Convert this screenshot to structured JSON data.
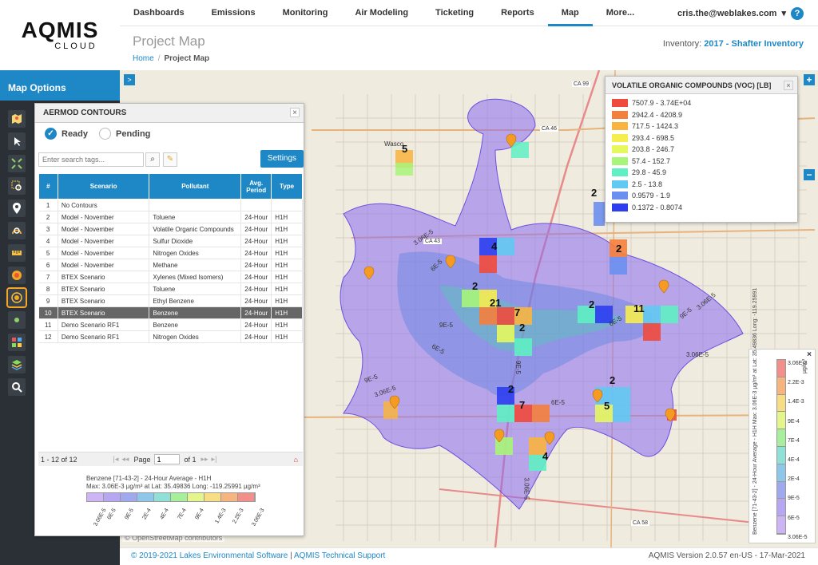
{
  "logo": {
    "main": "AQMIS",
    "sub": "CLOUD"
  },
  "nav": [
    "Dashboards",
    "Emissions",
    "Monitoring",
    "Air Modeling",
    "Ticketing",
    "Reports",
    "Map",
    "More..."
  ],
  "nav_active": "Map",
  "user": {
    "email": "cris.the@weblakes.com",
    "caret": "▾",
    "help": "?"
  },
  "page": {
    "title": "Project Map",
    "breadcrumb_home": "Home",
    "breadcrumb_sep": "/",
    "breadcrumb_current": "Project Map"
  },
  "inventory": {
    "label": "Inventory:",
    "value": "2017 - Shafter Inventory"
  },
  "sidebar": {
    "title": "Map Options",
    "expand": ">"
  },
  "panel": {
    "title": "AERMOD CONTOURS",
    "close": "×",
    "ready": "Ready",
    "pending": "Pending",
    "search_placeholder": "Enter search tags...",
    "settings": "Settings",
    "columns": [
      "#",
      "Scenario",
      "Pollutant",
      "Avg. Period",
      "Type"
    ],
    "rows": [
      [
        "1",
        "No Contours",
        "",
        "",
        ""
      ],
      [
        "2",
        "Model - November",
        "Toluene",
        "24-Hour",
        "H1H"
      ],
      [
        "3",
        "Model - November",
        "Volatile Organic Compounds",
        "24-Hour",
        "H1H"
      ],
      [
        "4",
        "Model - November",
        "Sulfur Dioxide",
        "24-Hour",
        "H1H"
      ],
      [
        "5",
        "Model - November",
        "Nitrogen Oxides",
        "24-Hour",
        "H1H"
      ],
      [
        "6",
        "Model - November",
        "Methane",
        "24-Hour",
        "H1H"
      ],
      [
        "7",
        "BTEX Scenario",
        "Xylenes (Mixed Isomers)",
        "24-Hour",
        "H1H"
      ],
      [
        "8",
        "BTEX Scenario",
        "Toluene",
        "24-Hour",
        "H1H"
      ],
      [
        "9",
        "BTEX Scenario",
        "Ethyl Benzene",
        "24-Hour",
        "H1H"
      ],
      [
        "10",
        "BTEX Scenario",
        "Benzene",
        "24-Hour",
        "H1H"
      ],
      [
        "11",
        "Demo Scenario RF1",
        "Benzene",
        "24-Hour",
        "H1H"
      ],
      [
        "12",
        "Demo Scenario RF1",
        "Nitrogen Oxides",
        "24-Hour",
        "H1H"
      ]
    ],
    "selected_row": 9,
    "pager": {
      "range": "1 - 12 of 12",
      "page_label": "Page",
      "page": "1",
      "of": "of 1",
      "first": "|◂",
      "prev": "◂◂",
      "next": "▸▸",
      "last": "▸|"
    },
    "legend_caption_1": "Benzene [71-43-2] -  24-Hour Average - H1H",
    "legend_caption_2": "Max: 3.06E-3 µg/m³  at Lat: 35.49836  Long: -119.25991   µg/m³",
    "legend_ticks": [
      "3.06E-5",
      "6E-5",
      "9E-5",
      "2E-4",
      "4E-4",
      "7E-4",
      "9E-4",
      "1.4E-3",
      "2.2E-3",
      "3.06E-3"
    ],
    "legend_colors": [
      "#cdb4f5",
      "#b7a6f2",
      "#a0a8ee",
      "#8fc7ea",
      "#8fe0d6",
      "#a7ef9c",
      "#e4f58c",
      "#f7dd84",
      "#f6b47e",
      "#f28f8a"
    ]
  },
  "voc_legend": {
    "title": "VOLATILE ORGANIC COMPOUNDS (VOC) [LB]",
    "close": "×",
    "items": [
      {
        "label": "7507.9 - 3.74E+04",
        "color": "#f04a3c"
      },
      {
        "label": "2942.4 - 4208.9",
        "color": "#f5803c"
      },
      {
        "label": "717.5 - 1424.3",
        "color": "#f9b440"
      },
      {
        "label": "293.4 - 698.5",
        "color": "#f6ed4e"
      },
      {
        "label": "203.8 - 246.7",
        "color": "#e6f85e"
      },
      {
        "label": "57.4 - 152.7",
        "color": "#a9f57a"
      },
      {
        "label": "29.8 - 45.9",
        "color": "#5ff0c3"
      },
      {
        "label": "2.5 - 13.8",
        "color": "#62c9f2"
      },
      {
        "label": "0.9579 - 1.9",
        "color": "#6b8ff0"
      },
      {
        "label": "0.1372 - 0.8074",
        "color": "#2c3ef0"
      }
    ]
  },
  "vertical_legend": {
    "close": "×",
    "unit": "µg/m³",
    "ticks": [
      "3.06E-3",
      "2.2E-3",
      "1.4E-3",
      "9E-4",
      "7E-4",
      "4E-4",
      "2E-4",
      "9E-5",
      "6E-5",
      "3.06E-5"
    ],
    "caption": "Benzene [71-43-2] - 24-Hour Average - H1H   Max: 3.06E-3 µg/m³ at Lat: 35.49836  Long: -119.25991"
  },
  "map": {
    "zoom_in": "+",
    "zoom_out": "−",
    "credit": "© OpenStreetMap contributors",
    "clusters": [
      "5",
      "4",
      "2",
      "2",
      "21",
      "7",
      "2",
      "2",
      "11",
      "2",
      "2",
      "7",
      "5",
      "4",
      "2"
    ],
    "contour_labels": [
      "3.06E-5",
      "6E-5",
      "9E-5",
      "6E-5",
      "9E-5",
      "3.06E-5",
      "6E-5",
      "9E-5",
      "3.06E-5",
      "6E-5",
      "9E-5",
      "3.06E-5",
      "3.06E-5"
    ],
    "road_labels": [
      "CA 99",
      "CA 46",
      "CA 43",
      "CA 58",
      "Wasco"
    ]
  },
  "footer": {
    "copyright": "© 2019-2021 Lakes Environmental Software",
    "sep": "|",
    "support": "AQMIS Technical Support",
    "version": "AQMIS Version 2.0.57 en-US - 17-Mar-2021"
  }
}
